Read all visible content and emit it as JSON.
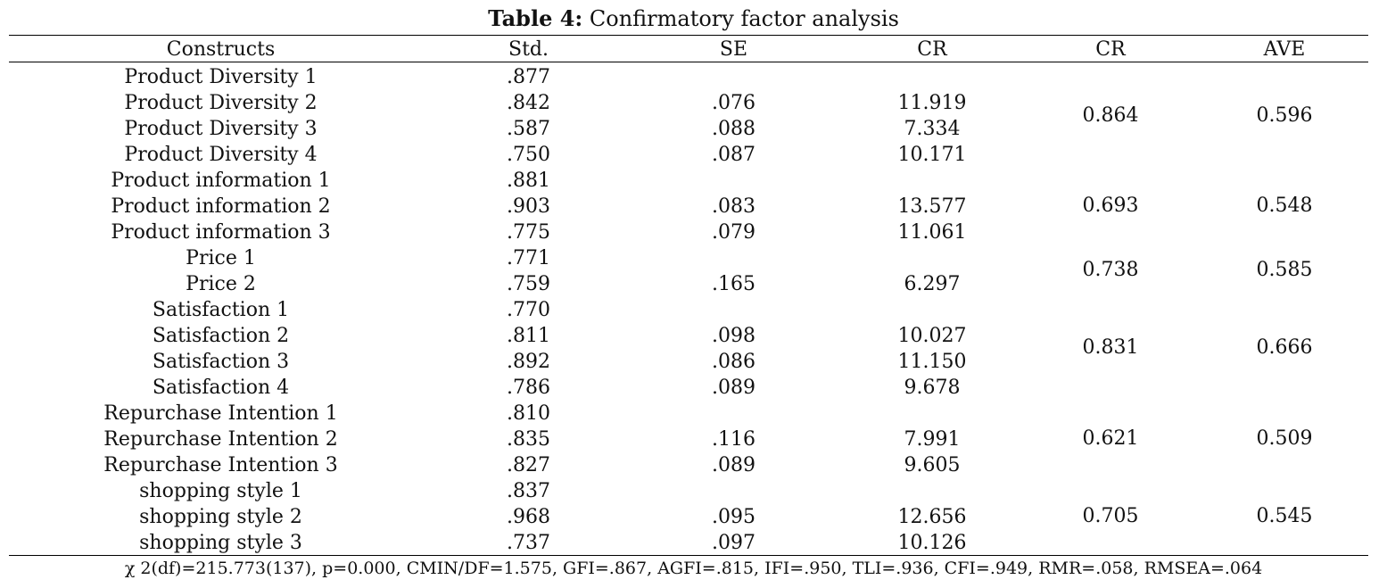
{
  "caption": {
    "label": "Table 4:",
    "title": " Confirmatory factor analysis"
  },
  "headers": [
    "Constructs",
    "Std.",
    "SE",
    "CR",
    "CR",
    "AVE"
  ],
  "rows": [
    {
      "construct": "Product Diversity 1",
      "std": ".877",
      "se": "",
      "cr": ""
    },
    {
      "construct": "Product Diversity 2",
      "std": ".842",
      "se": ".076",
      "cr": "11.919"
    },
    {
      "construct": "Product Diversity 3",
      "std": ".587",
      "se": ".088",
      "cr": "7.334"
    },
    {
      "construct": "Product Diversity 4",
      "std": ".750",
      "se": ".087",
      "cr": "10.171"
    },
    {
      "construct": "Product information 1",
      "std": ".881",
      "se": "",
      "cr": ""
    },
    {
      "construct": "Product information 2",
      "std": ".903",
      "se": ".083",
      "cr": "13.577"
    },
    {
      "construct": "Product information 3",
      "std": ".775",
      "se": ".079",
      "cr": "11.061"
    },
    {
      "construct": "Price 1",
      "std": ".771",
      "se": "",
      "cr": ""
    },
    {
      "construct": "Price 2",
      "std": ".759",
      "se": ".165",
      "cr": "6.297"
    },
    {
      "construct": "Satisfaction 1",
      "std": ".770",
      "se": "",
      "cr": ""
    },
    {
      "construct": "Satisfaction 2",
      "std": ".811",
      "se": ".098",
      "cr": "10.027"
    },
    {
      "construct": "Satisfaction 3",
      "std": ".892",
      "se": ".086",
      "cr": "11.150"
    },
    {
      "construct": "Satisfaction 4",
      "std": ".786",
      "se": ".089",
      "cr": "9.678"
    },
    {
      "construct": "Repurchase Intention 1",
      "std": ".810",
      "se": "",
      "cr": ""
    },
    {
      "construct": "Repurchase Intention 2",
      "std": ".835",
      "se": ".116",
      "cr": "7.991"
    },
    {
      "construct": "Repurchase Intention 3",
      "std": ".827",
      "se": ".089",
      "cr": "9.605"
    },
    {
      "construct": "shopping style 1",
      "std": ".837",
      "se": "",
      "cr": ""
    },
    {
      "construct": "shopping style 2",
      "std": ".968",
      "se": ".095",
      "cr": "12.656"
    },
    {
      "construct": "shopping style 3",
      "std": ".737",
      "se": ".097",
      "cr": "10.126"
    }
  ],
  "groups": [
    {
      "cr": "0.864",
      "ave": "0.596"
    },
    {
      "cr": "0.693",
      "ave": "0.548"
    },
    {
      "cr": "0.738",
      "ave": "0.585"
    },
    {
      "cr": "0.831",
      "ave": "0.666"
    },
    {
      "cr": "0.621",
      "ave": "0.509"
    },
    {
      "cr": "0.705",
      "ave": "0.545"
    }
  ],
  "footer": "χ 2(df)=215.773(137), p=0.000, CMIN/DF=1.575, GFI=.867, AGFI=.815, IFI=.950, TLI=.936, CFI=.949, RMR=.058, RMSEA=.064"
}
